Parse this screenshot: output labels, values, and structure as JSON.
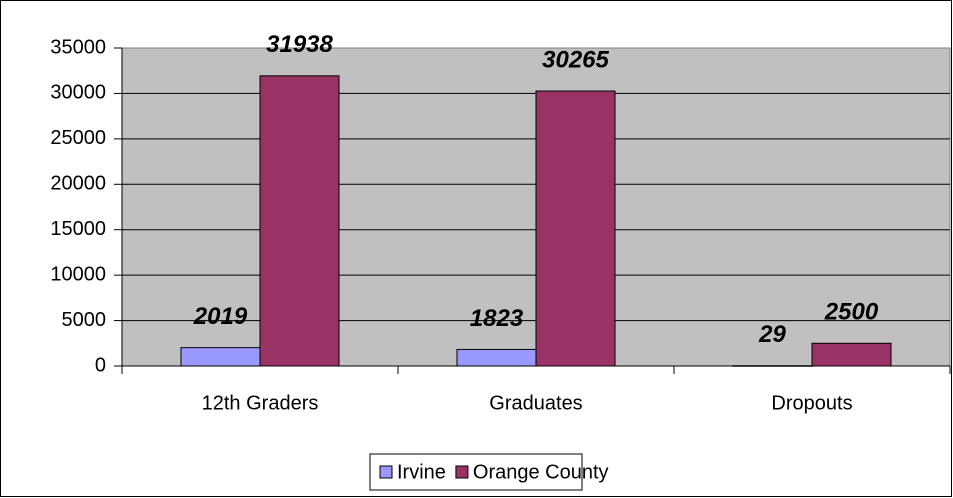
{
  "chart_data": {
    "type": "bar",
    "categories": [
      "12th Graders",
      "Graduates",
      "Dropouts"
    ],
    "series": [
      {
        "name": "Irvine",
        "color": "#9999ff",
        "values": [
          2019,
          1823,
          29
        ]
      },
      {
        "name": "Orange County",
        "color": "#993366",
        "values": [
          31938,
          30265,
          2500
        ]
      }
    ],
    "ylim": [
      0,
      35000
    ],
    "yticks": [
      0,
      5000,
      10000,
      15000,
      20000,
      25000,
      30000,
      35000
    ],
    "grid": true,
    "legend": "bottom"
  }
}
